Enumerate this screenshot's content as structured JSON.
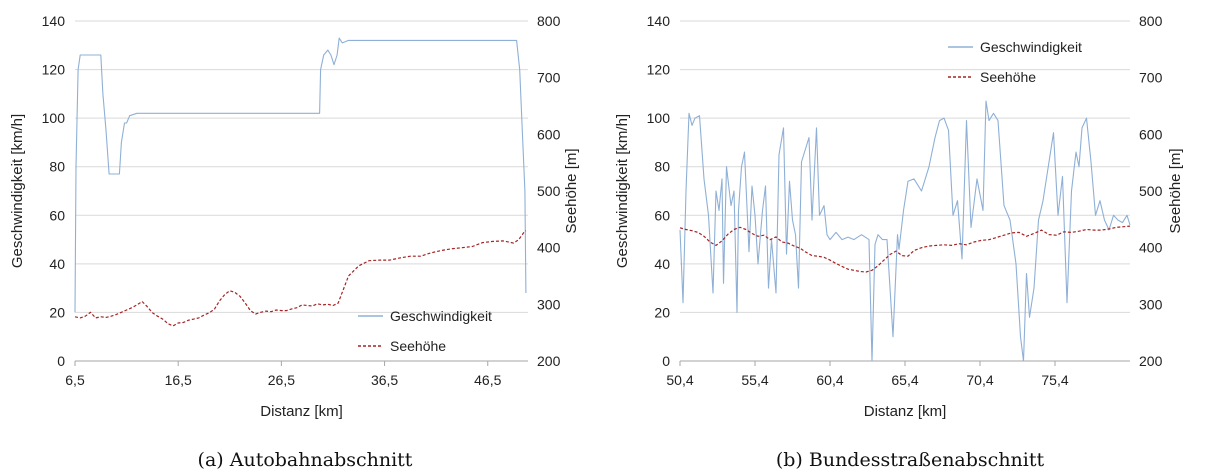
{
  "figure": {
    "captions": [
      "(a)  Autobahnabschnitt",
      "(b)  Bundesstraßenabschnitt"
    ]
  },
  "chart_data": [
    {
      "type": "line",
      "xlabel": "Distanz [km]",
      "ylabel": "Geschwindigkeit [km/h]",
      "y2label": "Seehöhe [m]",
      "xlim": [
        6.5,
        50.4
      ],
      "ylim": [
        0,
        140
      ],
      "y2lim": [
        200,
        800
      ],
      "xticks": [
        "6,5",
        "16,5",
        "26,5",
        "36,5",
        "46,5"
      ],
      "xtick_values": [
        6.5,
        16.5,
        26.5,
        36.5,
        46.5
      ],
      "yticks": [
        "0",
        "20",
        "40",
        "60",
        "80",
        "100",
        "120",
        "140"
      ],
      "y2ticks": [
        "200",
        "300",
        "400",
        "500",
        "600",
        "700",
        "800"
      ],
      "grid": true,
      "legend_position": "bottom-right",
      "series": [
        {
          "name": "Geschwindigkeit",
          "axis": "left",
          "color": "#8fb0d6",
          "style": "solid",
          "x": [
            6.5,
            6.6,
            6.8,
            7.0,
            7.5,
            8.0,
            8.5,
            9.0,
            9.2,
            9.5,
            9.8,
            10.0,
            10.5,
            10.8,
            11.0,
            11.3,
            11.5,
            11.8,
            12.5,
            15.0,
            20.0,
            25.0,
            29.0,
            30.2,
            30.3,
            30.6,
            31.0,
            31.3,
            31.6,
            31.9,
            32.1,
            32.4,
            33.0,
            36.0,
            40.0,
            45.0,
            49.0,
            49.3,
            49.6,
            49.9,
            50.1,
            50.2
          ],
          "y": [
            20,
            80,
            120,
            126,
            126,
            126,
            126,
            126,
            110,
            95,
            77,
            77,
            77,
            77,
            90,
            98,
            98,
            101,
            102,
            102,
            102,
            102,
            102,
            102,
            120,
            126,
            128,
            126,
            122,
            126,
            133,
            131,
            132,
            132,
            132,
            132,
            132,
            132,
            120,
            90,
            70,
            28
          ]
        },
        {
          "name": "Seehöhe",
          "axis": "right",
          "color": "#a42424",
          "style": "dashed",
          "x": [
            6.5,
            7.0,
            7.5,
            8.0,
            8.5,
            9.0,
            9.5,
            10.0,
            10.5,
            11.0,
            11.5,
            12.0,
            12.5,
            13.0,
            13.5,
            14.0,
            14.5,
            15.0,
            15.5,
            16.0,
            16.5,
            17.0,
            17.5,
            18.0,
            18.5,
            19.0,
            19.5,
            20.0,
            20.5,
            21.0,
            21.5,
            22.0,
            22.5,
            23.0,
            23.5,
            24.0,
            24.5,
            25.0,
            25.5,
            26.0,
            26.5,
            27.0,
            27.5,
            28.0,
            28.5,
            29.0,
            29.5,
            30.0,
            30.5,
            31.0,
            31.5,
            32.0,
            32.5,
            33.0,
            33.5,
            34.0,
            35.0,
            36.0,
            37.0,
            38.0,
            39.0,
            40.0,
            41.0,
            42.0,
            43.0,
            44.0,
            45.0,
            46.0,
            47.0,
            48.0,
            49.0,
            49.5,
            50.0,
            50.2
          ],
          "y": [
            278,
            276,
            279,
            286,
            276,
            278,
            277,
            279,
            282,
            286,
            290,
            294,
            299,
            305,
            296,
            285,
            279,
            274,
            266,
            262,
            267,
            268,
            272,
            274,
            276,
            281,
            285,
            291,
            306,
            317,
            324,
            321,
            314,
            302,
            289,
            283,
            286,
            288,
            287,
            290,
            289,
            289,
            292,
            294,
            299,
            298,
            297,
            301,
            299,
            300,
            298,
            302,
            326,
            350,
            359,
            368,
            377,
            378,
            378,
            382,
            385,
            385,
            391,
            395,
            398,
            400,
            402,
            409,
            411,
            412,
            408,
            414,
            427,
            430
          ]
        }
      ]
    },
    {
      "type": "line",
      "xlabel": "Distanz [km]",
      "ylabel": "Geschwindigkeit [km/h]",
      "y2label": "Seehöhe [m]",
      "xlim": [
        50.4,
        80.4
      ],
      "ylim": [
        0,
        140
      ],
      "y2lim": [
        200,
        800
      ],
      "xticks": [
        "50,4",
        "55,4",
        "60,4",
        "65,4",
        "70,4",
        "75,4"
      ],
      "xtick_values": [
        50.4,
        55.4,
        60.4,
        65.4,
        70.4,
        75.4
      ],
      "yticks": [
        "0",
        "20",
        "40",
        "60",
        "80",
        "100",
        "120",
        "140"
      ],
      "y2ticks": [
        "200",
        "300",
        "400",
        "500",
        "600",
        "700",
        "800"
      ],
      "grid": true,
      "legend_position": "top-right",
      "series": [
        {
          "name": "Geschwindigkeit",
          "axis": "left",
          "color": "#8fb0d6",
          "style": "solid",
          "x": [
            50.4,
            50.6,
            50.8,
            51.0,
            51.2,
            51.4,
            51.7,
            52.0,
            52.3,
            52.6,
            52.8,
            53.0,
            53.2,
            53.3,
            53.5,
            53.8,
            54.0,
            54.2,
            54.3,
            54.5,
            54.7,
            55.0,
            55.2,
            55.4,
            55.6,
            55.9,
            56.1,
            56.3,
            56.5,
            56.8,
            57.0,
            57.3,
            57.5,
            57.7,
            57.9,
            58.1,
            58.3,
            58.5,
            58.7,
            59.0,
            59.2,
            59.5,
            59.7,
            60.0,
            60.2,
            60.4,
            60.8,
            61.2,
            61.6,
            62.0,
            62.5,
            63.0,
            63.2,
            63.4,
            63.6,
            63.9,
            64.2,
            64.6,
            64.9,
            65.0,
            65.3,
            65.6,
            66.0,
            66.5,
            67.0,
            67.4,
            67.7,
            68.0,
            68.3,
            68.6,
            68.9,
            69.2,
            69.5,
            69.8,
            70.2,
            70.6,
            70.8,
            71.0,
            71.3,
            71.6,
            72.0,
            72.4,
            72.8,
            73.1,
            73.3,
            73.5,
            73.7,
            74.0,
            74.3,
            74.6,
            75.0,
            75.3,
            75.6,
            75.9,
            76.2,
            76.5,
            76.8,
            77.0,
            77.2,
            77.5,
            77.8,
            78.1,
            78.4,
            78.7,
            79.0,
            79.3,
            79.6,
            79.9,
            80.2,
            80.4
          ],
          "y": [
            54,
            24,
            70,
            102,
            97,
            100,
            101,
            75,
            60,
            28,
            70,
            62,
            75,
            32,
            80,
            64,
            70,
            20,
            62,
            80,
            86,
            45,
            72,
            60,
            40,
            62,
            72,
            30,
            50,
            28,
            85,
            96,
            44,
            74,
            58,
            52,
            30,
            82,
            86,
            92,
            58,
            96,
            60,
            64,
            52,
            50,
            53,
            50,
            51,
            50,
            52,
            50,
            0,
            48,
            52,
            50,
            50,
            10,
            52,
            46,
            62,
            74,
            75,
            70,
            80,
            92,
            99,
            100,
            95,
            60,
            66,
            42,
            99,
            55,
            75,
            62,
            107,
            99,
            102,
            99,
            64,
            58,
            40,
            10,
            0,
            36,
            18,
            30,
            58,
            66,
            82,
            94,
            60,
            76,
            24,
            70,
            86,
            80,
            96,
            100,
            82,
            60,
            66,
            58,
            54,
            60,
            58,
            57,
            60,
            56
          ]
        },
        {
          "name": "Seehöhe",
          "axis": "right",
          "color": "#a42424",
          "style": "dashed",
          "x": [
            50.4,
            50.8,
            51.2,
            51.6,
            52.0,
            52.4,
            52.8,
            53.2,
            53.6,
            54.0,
            54.4,
            54.8,
            55.2,
            55.6,
            56.0,
            56.4,
            56.8,
            57.2,
            57.6,
            58.0,
            58.4,
            58.8,
            59.2,
            59.6,
            60.0,
            60.4,
            60.8,
            61.2,
            61.6,
            62.0,
            62.4,
            62.8,
            63.2,
            63.6,
            64.0,
            64.4,
            64.8,
            65.2,
            65.6,
            66.0,
            66.5,
            67.0,
            67.5,
            68.0,
            68.5,
            69.0,
            69.5,
            70.0,
            70.5,
            71.0,
            71.5,
            72.0,
            72.5,
            73.0,
            73.5,
            74.0,
            74.5,
            75.0,
            75.5,
            76.0,
            76.5,
            77.0,
            77.5,
            78.0,
            78.5,
            79.0,
            79.5,
            80.0,
            80.4
          ],
          "y": [
            435,
            432,
            430,
            427,
            420,
            410,
            404,
            412,
            424,
            432,
            436,
            432,
            425,
            420,
            422,
            414,
            419,
            410,
            408,
            403,
            399,
            392,
            386,
            385,
            383,
            378,
            372,
            367,
            362,
            360,
            358,
            357,
            360,
            368,
            378,
            388,
            394,
            386,
            385,
            395,
            400,
            403,
            404,
            405,
            404,
            407,
            405,
            410,
            413,
            414,
            418,
            422,
            426,
            427,
            420,
            425,
            431,
            423,
            422,
            428,
            427,
            429,
            432,
            431,
            431,
            433,
            436,
            437,
            438
          ]
        }
      ]
    }
  ]
}
